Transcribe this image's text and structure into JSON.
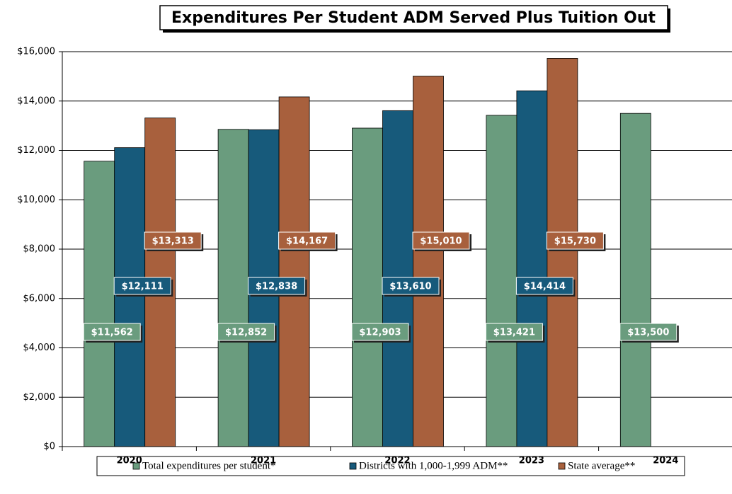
{
  "chart_data": {
    "type": "bar",
    "title": "Expenditures Per Student ADM Served Plus Tuition Out",
    "categories": [
      "2020",
      "2021",
      "2022",
      "2023",
      "2024"
    ],
    "series": [
      {
        "name": "Total expenditures per student*",
        "color": "#6a9c7e",
        "values": [
          11562,
          12852,
          12903,
          13421,
          13500
        ],
        "value_labels": [
          "$11,562",
          "$12,852",
          "$12,903",
          "$13,421",
          "$13,500"
        ]
      },
      {
        "name": "Districts with 1,000-1,999 ADM**",
        "color": "#175a7b",
        "values": [
          12111,
          12838,
          13610,
          14414,
          null
        ],
        "value_labels": [
          "$12,111",
          "$12,838",
          "$13,610",
          "$14,414",
          null
        ]
      },
      {
        "name": "State average**",
        "color": "#a8603d",
        "values": [
          13313,
          14167,
          15010,
          15730,
          null
        ],
        "value_labels": [
          "$13,313",
          "$14,167",
          "$15,010",
          "$15,730",
          null
        ]
      }
    ],
    "ylim": [
      0,
      16000
    ],
    "yticks": [
      {
        "value": 0,
        "label": "$0"
      },
      {
        "value": 2000,
        "label": "$2,000"
      },
      {
        "value": 4000,
        "label": "$4,000"
      },
      {
        "value": 6000,
        "label": "$6,000"
      },
      {
        "value": 8000,
        "label": "$8,000"
      },
      {
        "value": 10000,
        "label": "$10,000"
      },
      {
        "value": 12000,
        "label": "$12,000"
      },
      {
        "value": 14000,
        "label": "$14,000"
      },
      {
        "value": 16000,
        "label": "$16,000"
      }
    ],
    "grid": true
  }
}
